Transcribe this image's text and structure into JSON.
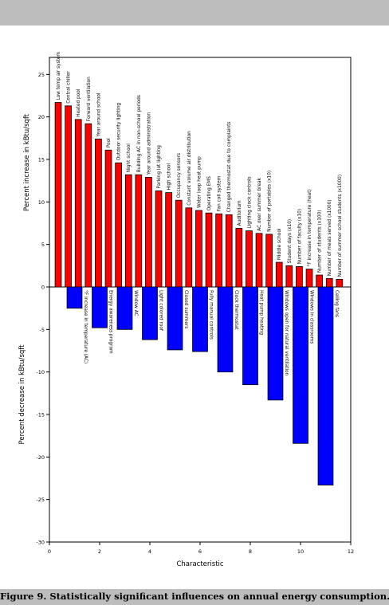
{
  "caption": "Figure 9. Statistically significant influences on annual energy consumption.",
  "chart_data": {
    "type": "bar",
    "title": "",
    "xlabel": "Characteristic",
    "ylabel_top": "Percent increase in kBtu/sqft",
    "ylabel_bottom": "Percent decrease in kBtu/sqft",
    "xlim": [
      0,
      12
    ],
    "ylim": [
      -30,
      27
    ],
    "x_ticks": [
      0,
      2,
      4,
      6,
      8,
      10,
      12
    ],
    "y_ticks": [
      -30,
      -25,
      -20,
      -15,
      -10,
      -5,
      0,
      5,
      10,
      15,
      20,
      25
    ],
    "grid": false,
    "colors": {
      "increase": "#ff0000",
      "decrease": "#0000ff"
    },
    "series": [
      {
        "name": "increase",
        "bar_width": 0.25,
        "points": [
          {
            "x": 0.35,
            "value": 21.7,
            "label": "Low temp air system"
          },
          {
            "x": 0.75,
            "value": 21.3,
            "label": "Central chiller"
          },
          {
            "x": 1.15,
            "value": 19.7,
            "label": "Heated pool"
          },
          {
            "x": 1.55,
            "value": 19.2,
            "label": "Forward ventilation"
          },
          {
            "x": 1.95,
            "value": 17.4,
            "label": "Year around school"
          },
          {
            "x": 2.35,
            "value": 16.1,
            "label": "Pool"
          },
          {
            "x": 2.75,
            "value": 14.6,
            "label": "Outdoor security lighting"
          },
          {
            "x": 3.15,
            "value": 13.2,
            "label": "Night school"
          },
          {
            "x": 3.55,
            "value": 13.2,
            "label": "Building AC in non-school periods"
          },
          {
            "x": 3.95,
            "value": 12.9,
            "label": "Year around administration"
          },
          {
            "x": 4.35,
            "value": 11.3,
            "label": "Parking lot lighting"
          },
          {
            "x": 4.75,
            "value": 11.1,
            "label": "High school"
          },
          {
            "x": 5.15,
            "value": 10.2,
            "label": "Occupancy sensors"
          },
          {
            "x": 5.55,
            "value": 9.3,
            "label": "Constant volume air distribution"
          },
          {
            "x": 5.95,
            "value": 9.0,
            "label": "Water loop heat pump"
          },
          {
            "x": 6.35,
            "value": 8.7,
            "label": "Operating EMS"
          },
          {
            "x": 6.75,
            "value": 8.6,
            "label": "Fan coil system"
          },
          {
            "x": 7.15,
            "value": 8.5,
            "label": "Changed thermostat due to complaints"
          },
          {
            "x": 7.55,
            "value": 6.9,
            "label": "Auditorium"
          },
          {
            "x": 7.95,
            "value": 6.6,
            "label": "Lighting clock controls"
          },
          {
            "x": 8.35,
            "value": 6.3,
            "label": "AC over summer break"
          },
          {
            "x": 8.75,
            "value": 6.2,
            "label": "Number of portables (x10)"
          },
          {
            "x": 9.15,
            "value": 2.9,
            "label": "Middle school"
          },
          {
            "x": 9.55,
            "value": 2.5,
            "label": "Student days (x10)"
          },
          {
            "x": 9.95,
            "value": 2.4,
            "label": "Number of faculty (x10)"
          },
          {
            "x": 10.35,
            "value": 2.1,
            "label": "°F increase in temperature (heat)"
          },
          {
            "x": 10.75,
            "value": 1.4,
            "label": "Number of students (x100)"
          },
          {
            "x": 11.15,
            "value": 1.0,
            "label": "Number of meals served (x1000)"
          },
          {
            "x": 11.55,
            "value": 0.9,
            "label": "Number of summer school students (x1000)"
          }
        ]
      },
      {
        "name": "decrease",
        "bar_width": 0.6,
        "points": [
          {
            "x": 1.0,
            "value": -2.5,
            "label": "°F increase in temperature (AC)"
          },
          {
            "x": 2.0,
            "value": -4.8,
            "label": "Energy awareness program"
          },
          {
            "x": 3.0,
            "value": -5.0,
            "label": "Window AC"
          },
          {
            "x": 4.0,
            "value": -6.2,
            "label": "Light colored roof"
          },
          {
            "x": 5.0,
            "value": -7.4,
            "label": "Closed summers"
          },
          {
            "x": 6.0,
            "value": -7.6,
            "label": "Fully manual controls"
          },
          {
            "x": 7.0,
            "value": -10.0,
            "label": "Clock thermostat"
          },
          {
            "x": 8.0,
            "value": -11.5,
            "label": "Heat pump heating"
          },
          {
            "x": 9.0,
            "value": -13.3,
            "label": "Windows open for natural ventilation"
          },
          {
            "x": 10.0,
            "value": -18.4,
            "label": "Windows in classrooms"
          },
          {
            "x": 11.0,
            "value": -23.3,
            "label": "Ceiling fans"
          }
        ]
      }
    ]
  }
}
